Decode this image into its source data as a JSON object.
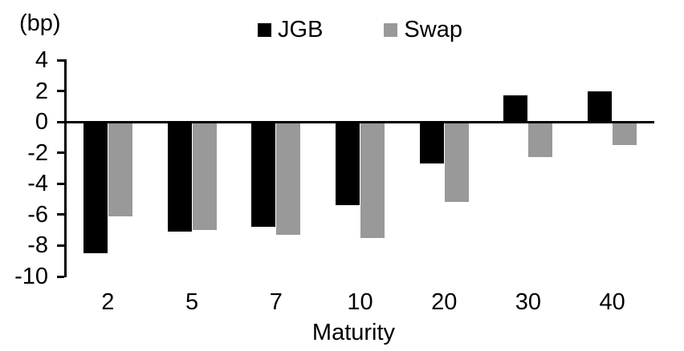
{
  "chart_data": {
    "type": "bar",
    "title": "",
    "unit_label": "(bp)",
    "xlabel": "Maturity",
    "categories": [
      "2",
      "5",
      "7",
      "10",
      "20",
      "30",
      "40"
    ],
    "series": [
      {
        "name": "JGB",
        "color": "#000000",
        "values": [
          -8.5,
          -7.1,
          -6.8,
          -5.4,
          -2.7,
          1.7,
          2.0
        ]
      },
      {
        "name": "Swap",
        "color": "#999999",
        "values": [
          -6.1,
          -7.0,
          -7.3,
          -7.5,
          -5.2,
          -2.3,
          -1.5
        ]
      }
    ],
    "ylim": [
      -10,
      4
    ],
    "yticks": [
      4,
      2,
      0,
      -2,
      -4,
      -6,
      -8,
      -10
    ],
    "ytick_step": 2,
    "legend_position": "top-center",
    "grid": false,
    "axis_color": "#000000",
    "background_color": "#ffffff"
  }
}
